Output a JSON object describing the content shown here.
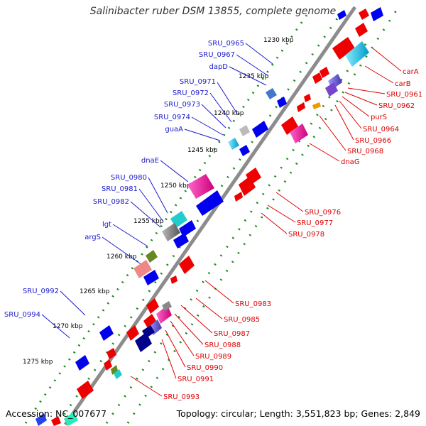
{
  "title": "Salinibacter ruber DSM 13855, complete genome",
  "accession": "Accession: NC_007677",
  "summary": "Topology: circular; Length: 3,551,823 bp; Genes: 2,849",
  "colors": {
    "backbone": "#8c8c8c",
    "tick_dots": "#1a8a1a",
    "forward_label": "#1a1acc",
    "reverse_label": "#dd0000",
    "plus_strand": "#0000ee",
    "minus_strand": "#ee0000"
  },
  "scale_labels": [
    "1230 kbp",
    "1235 kbp",
    "1240 kbp",
    "1245 kbp",
    "1250 kbp",
    "1255 kbp",
    "1260 kbp",
    "1265 kbp",
    "1270 kbp",
    "1275 kbp"
  ],
  "forward_genes": [
    "SRU_0965",
    "SRU_0967",
    "dapD",
    "SRU_0971",
    "SRU_0972",
    "SRU_0973",
    "SRU_0974",
    "guaA",
    "dnaE",
    "SRU_0980",
    "SRU_0981",
    "SRU_0982",
    "lgt",
    "argS",
    "SRU_0992",
    "SRU_0994"
  ],
  "reverse_genes": [
    "carA",
    "carB",
    "SRU_0961",
    "SRU_0962",
    "purS",
    "SRU_0964",
    "SRU_0966",
    "SRU_0968",
    "dnaG",
    "SRU_0976",
    "SRU_0977",
    "SRU_0978",
    "SRU_0983",
    "SRU_0985",
    "SRU_0987",
    "SRU_0988",
    "SRU_0989",
    "SRU_0990",
    "SRU_0991",
    "SRU_0993"
  ]
}
